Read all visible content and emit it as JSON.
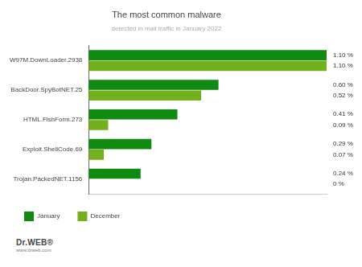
{
  "chart_data": {
    "type": "bar",
    "title": "The most common malware",
    "subtitle": "detected in mail traffic in January 2022",
    "orientation": "horizontal",
    "categories": [
      "W97M.DownLoader.2938",
      "BackDoor.SpyBotNET.25",
      "HTML.FishForm.273",
      "Exploit.ShellCode.69",
      "Trojan.PackedNET.1156"
    ],
    "series": [
      {
        "name": "January",
        "color": "#118a11",
        "values": [
          1.1,
          0.6,
          0.41,
          0.29,
          0.24
        ],
        "value_labels": [
          "1.10 %",
          "0.60 %",
          "0.41 %",
          "0.29 %",
          "0.24 %"
        ]
      },
      {
        "name": "December",
        "color": "#72b01d",
        "values": [
          1.1,
          0.52,
          0.09,
          0.07,
          0
        ],
        "value_labels": [
          "1.10 %",
          "0.52 %",
          "0.09 %",
          "0.07 %",
          "0 %"
        ]
      }
    ],
    "xlim": [
      0,
      1.1
    ],
    "xticks": [],
    "grid": false,
    "legend": "bottom-left",
    "data_labels": true,
    "tick_labels": "y"
  },
  "footer": {
    "logo": "Dr.WEB®",
    "url": "www.drweb.com"
  }
}
